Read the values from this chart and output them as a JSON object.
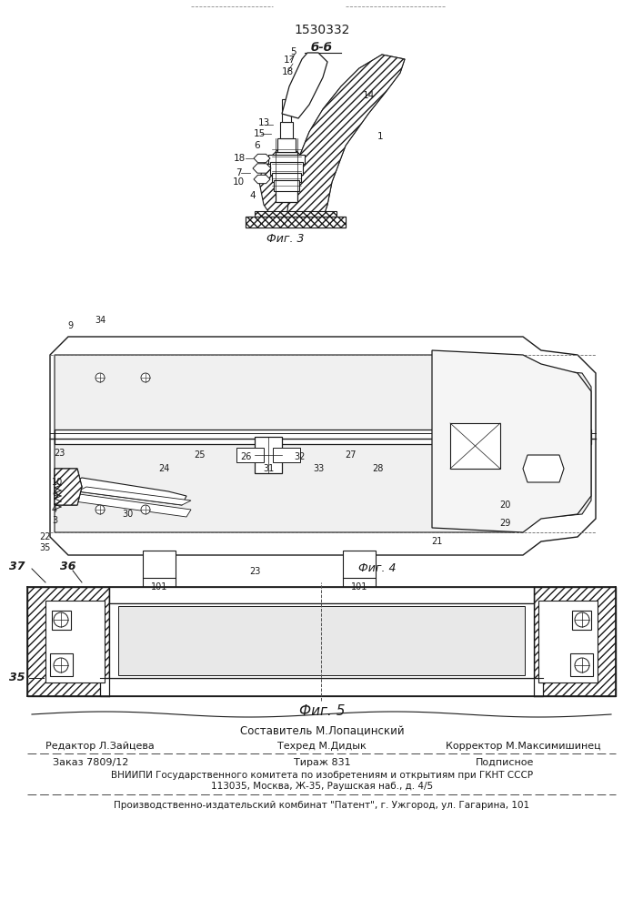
{
  "patent_number": "1530332",
  "section_label": "б-б",
  "fig3_label": "Фиг. 3",
  "fig4_label": "Фиг. 4",
  "fig5_label": "Фиг. 5",
  "sostavitel": "Составитель М.Лопацинский",
  "editor_label": "Редактор Л.Зайцева",
  "tehred_label": "Техред М.Дидык",
  "korrektor_label": "Корректор М.Максимишинец",
  "zakaz_label": "Заказ 7809/12",
  "tirazh_label": "Тираж 831",
  "podpisnoe_label": "Подписное",
  "vniip_line1": "ВНИИПИ Государственного комитета по изобретениям и открытиям при ГКНТ СССР",
  "vniip_line2": "113035, Москва, Ж-35, Раушская наб., д. 4/5",
  "kombinat_line": "Производственно-издательский комбинат \"Патент\", г. Ужгород, ул. Гагарина, 101",
  "bg_color": "#ffffff",
  "text_color": "#1a1a1a",
  "line_color": "#1a1a1a"
}
